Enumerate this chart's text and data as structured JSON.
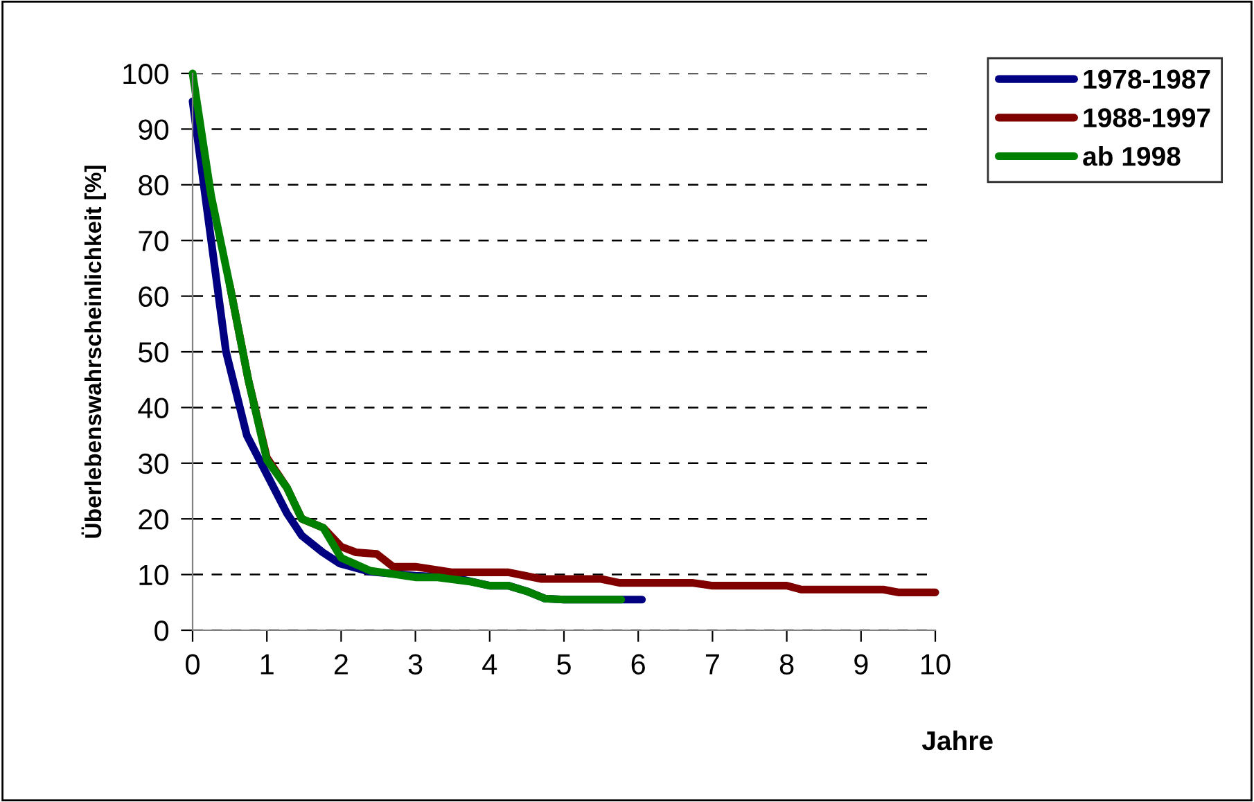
{
  "chart_data": {
    "type": "line",
    "xlabel": "Jahre",
    "ylabel": "Überlebenswahrscheinlichkeit [%]",
    "xlim": [
      0,
      10
    ],
    "ylim": [
      0,
      100
    ],
    "xticks": [
      0,
      1,
      2,
      3,
      4,
      5,
      6,
      7,
      8,
      9,
      10
    ],
    "yticks": [
      0,
      10,
      20,
      30,
      40,
      50,
      60,
      70,
      80,
      90,
      100
    ],
    "grid": "y",
    "legend": "top right",
    "line_style": "solid",
    "marker": "none",
    "series": [
      {
        "name": "1978-1987",
        "color": "#000080",
        "x": [
          0,
          0.25,
          0.45,
          0.73,
          1.0,
          1.27,
          1.47,
          1.75,
          1.98,
          2.39,
          3.0,
          3.5,
          4.0,
          4.25,
          4.5,
          4.74,
          5.0,
          5.77,
          6.05
        ],
        "values": [
          95,
          70,
          50,
          35,
          28,
          21,
          17,
          14,
          12,
          10.5,
          9.8,
          9.5,
          8,
          8,
          7,
          5.7,
          5.5,
          5.5,
          5.5
        ]
      },
      {
        "name": "1988-1997",
        "color": "#800000",
        "x": [
          0.5,
          0.75,
          1.0,
          1.27,
          1.47,
          1.76,
          2.0,
          2.2,
          2.48,
          2.7,
          3.0,
          3.5,
          4.25,
          4.7,
          5.5,
          5.75,
          6.74,
          7.0,
          8.0,
          8.2,
          9.3,
          9.5,
          10
        ],
        "values": [
          62,
          45,
          31,
          25.6,
          20,
          18.4,
          15,
          14,
          13.7,
          11.4,
          11.4,
          10.4,
          10.4,
          9.2,
          9.2,
          8.5,
          8.5,
          8,
          8,
          7.3,
          7.3,
          6.8,
          6.8
        ]
      },
      {
        "name": "ab 1998",
        "color": "#008000",
        "x": [
          0,
          0.25,
          0.5,
          0.75,
          1.0,
          1.27,
          1.47,
          1.76,
          2.0,
          2.39,
          3.0,
          3.3,
          3.75,
          4.0,
          4.25,
          4.5,
          4.74,
          5.0,
          5.77
        ],
        "values": [
          100,
          78,
          62,
          45,
          30.6,
          25.6,
          20,
          18.4,
          13,
          10.7,
          9.5,
          9.5,
          8.7,
          8,
          8,
          7,
          5.7,
          5.5,
          5.5
        ]
      }
    ]
  }
}
